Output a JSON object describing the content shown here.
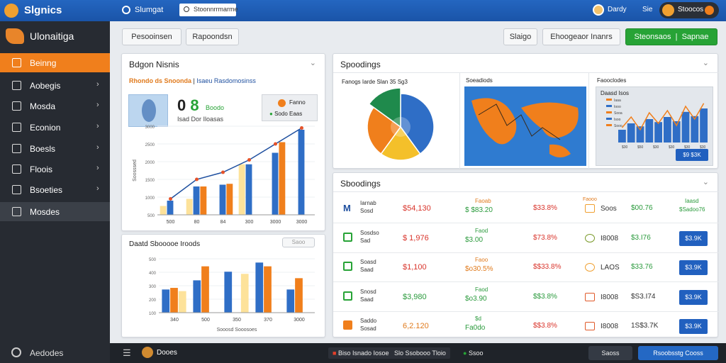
{
  "header": {
    "brand": "Slgnics",
    "app": "Slumgat",
    "search": "Stoonnrrmarme",
    "user": "Dardy",
    "lang": "Sie",
    "account": "Stoocos"
  },
  "sidebar": {
    "brand": "Ulonaitiga",
    "items": [
      "Beinng",
      "Aobegis",
      "Mosda",
      "Econion",
      "Boesls",
      "Floois",
      "Bsoeties",
      "Mosdes"
    ],
    "active": 0,
    "hover": 7,
    "footer": "Aedodes"
  },
  "toolbar": {
    "left": [
      "Pesooinsen",
      "Rapoondsn"
    ],
    "right": [
      "Slaigo",
      "Ehoogeaor Inanrs"
    ],
    "primary": [
      "Steonsaos",
      "Sapnae"
    ]
  },
  "panel_sales": {
    "title": "Bdgon Nisnis",
    "subtitle": [
      "Rhondo ds Snoonda",
      "Isaeu Rasdomosinss"
    ],
    "kpi": [
      "0",
      "8"
    ],
    "badge": "Boodo",
    "caption": "Isad Dor Iloasas",
    "note": [
      "Fanno",
      "Sodo Eaas"
    ],
    "chart": {
      "type": "bar",
      "axis_title": "Soosssed",
      "categories": [
        "500",
        "80",
        "84",
        "300",
        "3000",
        "3000"
      ],
      "ylim": [
        0,
        100
      ],
      "yticks": [
        {
          "value": 0,
          "label": "500"
        },
        {
          "value": 20,
          "label": "1000"
        },
        {
          "value": 40,
          "label": "1500"
        },
        {
          "value": 60,
          "label": "2000"
        },
        {
          "value": 80,
          "label": "2500"
        },
        {
          "value": 100,
          "label": "3000"
        }
      ],
      "series": [
        {
          "color": "#fde29a",
          "values": [
            10,
            18,
            null,
            57,
            null,
            null
          ]
        },
        {
          "color": "#2f6ec6",
          "values": [
            16,
            32,
            34,
            57,
            70,
            96
          ]
        },
        {
          "color": "#f07f1c",
          "values": [
            null,
            32,
            35,
            null,
            82,
            null
          ]
        }
      ],
      "line": {
        "color": "#1e4f9f",
        "marker": "#e5532a",
        "values": [
          18,
          40,
          48,
          62,
          80,
          98
        ]
      }
    }
  },
  "panel_compare": {
    "title": "Daatd Sbooooe Iroods",
    "button": "Saoo",
    "chart": {
      "type": "bar",
      "axis_title": "Sooosd Sooosoes",
      "categories": [
        "340",
        "500",
        "350",
        "370",
        "3000"
      ],
      "ylim": [
        0,
        100
      ],
      "yticks": [
        {
          "value": 0,
          "label": "100"
        },
        {
          "value": 25,
          "label": "200"
        },
        {
          "value": 50,
          "label": "300"
        },
        {
          "value": 75,
          "label": "400"
        },
        {
          "value": 100,
          "label": "500"
        }
      ],
      "series": [
        {
          "color": "#2f6ec6",
          "values": [
            43,
            60,
            76,
            93,
            43
          ]
        },
        {
          "color": "#f07f1c",
          "values": [
            46,
            86,
            null,
            86,
            64
          ]
        },
        {
          "color": "#fde29a",
          "values": [
            40,
            null,
            72,
            null,
            null
          ]
        }
      ]
    }
  },
  "panel_overview": {
    "title": "Spoodings",
    "pie": {
      "type": "pie",
      "title": "Fanogs Iarde Slan 35 Sg3",
      "values": [
        40,
        20,
        25,
        15
      ],
      "colors": [
        "#2f6ec6",
        "#f4c02a",
        "#f07f1c",
        "#1f8a4c"
      ]
    },
    "map": {
      "title": "Soeadiods"
    },
    "trend": {
      "type": "bar",
      "title": "Faooclodes",
      "card_title": "Daasd Isos",
      "legend": [
        "Iaaa",
        "Iooo",
        "Sooa",
        "Isoo",
        "Sooo"
      ],
      "button": "$9 $3K",
      "xlabels": [
        "$30",
        "$50",
        "$30",
        "$30",
        "$30",
        "$30"
      ],
      "ylim": [
        0,
        100
      ],
      "values": [
        30,
        45,
        38,
        55,
        48,
        60,
        50,
        72,
        62,
        80
      ],
      "color": "#2f6ec6",
      "line": {
        "color": "#f07f1c",
        "values": [
          35,
          60,
          30,
          70,
          45,
          75,
          40,
          85,
          55,
          92
        ]
      }
    }
  },
  "panel_table": {
    "title": "Sboodings",
    "rows": [
      {
        "icon": "M",
        "name": [
          "Iarnab",
          "Sosd"
        ],
        "amount": "$54,130",
        "amount_color": "#d9342b",
        "change_label": "Faoab",
        "change": "$ $83.20",
        "change_color": "#2a9a3c",
        "rate": "$33.8%",
        "rate_color": "#d9342b",
        "tag_label": "Faooo",
        "tag": "Soos",
        "total": "$00.76",
        "total_color": "#2a9a3c",
        "action": [
          "Iaasd",
          "$Sadoo76"
        ]
      },
      {
        "name": [
          "Sosdso",
          "Sad"
        ],
        "amount": "$ 1,976",
        "amount_color": "#d9342b",
        "change_label": "Faod",
        "change": "$3.00",
        "change_color": "#2a9a3c",
        "rate": "$73.8%",
        "rate_color": "#d9342b",
        "tag": "I8008",
        "total": "$3.I76",
        "total_color": "#2a9a3c",
        "button": "$3.9K"
      },
      {
        "name": [
          "Soasd",
          "Saad"
        ],
        "amount": "$1,100",
        "amount_color": "#d9342b",
        "change_label": "Faoo",
        "change": "$o30.5%",
        "change_color": "#e07a1c",
        "rate": "$$33.8%",
        "rate_color": "#d9342b",
        "tag": "LAOS",
        "total": "$33.76",
        "total_color": "#2a9a3c",
        "button": "$3.9K"
      },
      {
        "name": [
          "Snosd",
          "Saad"
        ],
        "amount": "$3,980",
        "amount_color": "#2a9a3c",
        "change_label": "Faod",
        "change": "$o3.90",
        "change_color": "#2a9a3c",
        "rate": "$$3.8%",
        "rate_color": "#2a9a3c",
        "tag": "I8008",
        "total": "$S3.I74",
        "total_color": "#333333",
        "button": "$3.9K"
      },
      {
        "name": [
          "Saddo",
          "Sosad"
        ],
        "amount": "6,2.120",
        "amount_color": "#e07a1c",
        "change_label": "$d",
        "change": "Fa0do",
        "change_color": "#2a9a3c",
        "rate": "$$3.8%",
        "rate_color": "#d9342b",
        "tag": "I8008",
        "total": "1S$3.7K",
        "total_color": "#333333",
        "button": "$3.9K"
      }
    ]
  },
  "footer": {
    "title": "Dooes",
    "chips": [
      "Biso Isnado Iosoe",
      "Slo Ssobooo Tloio",
      "Ssoo"
    ],
    "right": [
      "Saoss",
      "Rsoobsstg Cooss"
    ]
  }
}
